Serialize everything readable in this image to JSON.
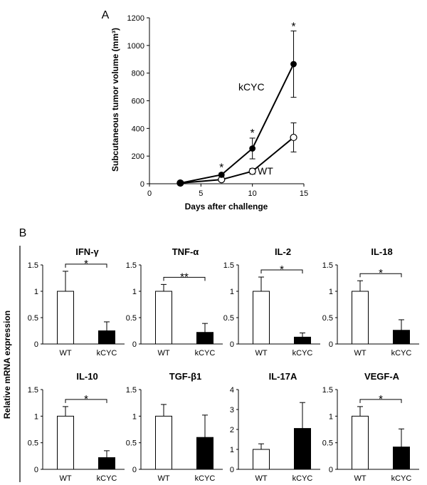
{
  "chart_data": [
    {
      "panel": "A",
      "type": "line",
      "title": "",
      "xlabel": "Days after challenge",
      "ylabel": "Subcutaneous tumor volume (mm³)",
      "xlim": [
        0,
        15
      ],
      "ylim": [
        0,
        1200
      ],
      "xticks": [
        0,
        5,
        10,
        15
      ],
      "yticks": [
        0,
        200,
        400,
        600,
        800,
        1000,
        1200
      ],
      "series": [
        {
          "name": "kCYC",
          "marker": "filled",
          "x": [
            3,
            7,
            10,
            14
          ],
          "y": [
            5,
            65,
            255,
            865
          ],
          "err": [
            3,
            12,
            75,
            240
          ]
        },
        {
          "name": "WT",
          "marker": "open",
          "x": [
            3,
            7,
            10,
            14
          ],
          "y": [
            5,
            30,
            90,
            335
          ],
          "err": [
            3,
            8,
            20,
            105
          ]
        }
      ],
      "series_labels": [
        "kCYC",
        "WT"
      ],
      "annotations": [
        {
          "x": 7,
          "y": 90,
          "text": "*"
        },
        {
          "x": 10,
          "y": 340,
          "text": "*"
        },
        {
          "x": 14,
          "y": 1110,
          "text": "*"
        }
      ]
    },
    {
      "panel": "B",
      "type": "bar",
      "ylabel": "Relative mRNA expression",
      "categories": [
        "WT",
        "kCYC"
      ],
      "subplots": [
        {
          "title": "IFN-γ",
          "ylim": [
            0,
            1.5
          ],
          "yticks": [
            "0",
            "0.5",
            "1",
            "1.5"
          ],
          "values": [
            1.0,
            0.25
          ],
          "err": [
            0.38,
            0.17
          ],
          "sig": "*"
        },
        {
          "title": "TNF-α",
          "ylim": [
            0,
            1.5
          ],
          "yticks": [
            "0",
            "0.5",
            "1",
            "1.5"
          ],
          "values": [
            1.0,
            0.22
          ],
          "err": [
            0.13,
            0.17
          ],
          "sig": "**"
        },
        {
          "title": "IL-2",
          "ylim": [
            0,
            1.5
          ],
          "yticks": [
            "0",
            "0.5",
            "1",
            "1.5"
          ],
          "values": [
            1.0,
            0.13
          ],
          "err": [
            0.27,
            0.08
          ],
          "sig": "*"
        },
        {
          "title": "IL-18",
          "ylim": [
            0,
            1.5
          ],
          "yticks": [
            "0",
            "0.5",
            "1",
            "1.5"
          ],
          "values": [
            1.0,
            0.26
          ],
          "err": [
            0.2,
            0.2
          ],
          "sig": "*"
        },
        {
          "title": "IL-10",
          "ylim": [
            0,
            1.5
          ],
          "yticks": [
            "0",
            "0.5",
            "1",
            "1.5"
          ],
          "values": [
            1.0,
            0.22
          ],
          "err": [
            0.18,
            0.13
          ],
          "sig": "*"
        },
        {
          "title": "TGF-β1",
          "ylim": [
            0,
            1.5
          ],
          "yticks": [
            "0",
            "0.5",
            "1",
            "1.5"
          ],
          "values": [
            1.0,
            0.6
          ],
          "err": [
            0.22,
            0.42
          ],
          "sig": ""
        },
        {
          "title": "IL-17A",
          "ylim": [
            0,
            4
          ],
          "yticks": [
            "0",
            "1",
            "2",
            "3",
            "4"
          ],
          "values": [
            1.0,
            2.05
          ],
          "err": [
            0.28,
            1.3
          ],
          "sig": ""
        },
        {
          "title": "VEGF-A",
          "ylim": [
            0,
            1.5
          ],
          "yticks": [
            "0",
            "0.5",
            "1",
            "1.5"
          ],
          "values": [
            1.0,
            0.42
          ],
          "err": [
            0.18,
            0.34
          ],
          "sig": "*"
        }
      ]
    }
  ]
}
